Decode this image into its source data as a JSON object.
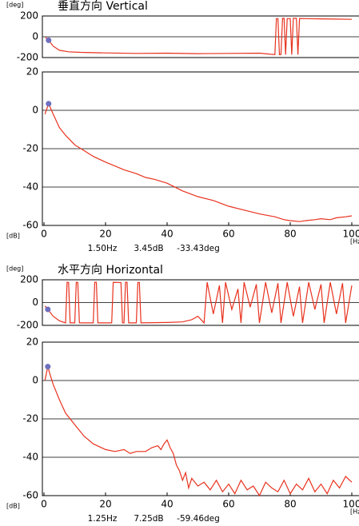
{
  "chart_data": [
    {
      "type": "line",
      "title": "垂直方向 Vertical",
      "y_unit": "[deg]",
      "xlim": [
        0,
        100
      ],
      "ylim": [
        -200,
        200
      ],
      "yticks": [
        -200,
        0,
        200
      ],
      "grid": true,
      "color": "#e8321e",
      "marker_color": "#6f6fc0",
      "x": [
        0.5,
        1.5,
        3,
        5,
        8,
        12,
        20,
        30,
        40,
        50,
        60,
        70,
        75,
        75.5,
        76,
        76.5,
        77,
        77.5,
        78,
        78.5,
        79,
        80,
        80.5,
        81,
        82,
        82.5,
        83,
        85,
        90,
        95,
        100
      ],
      "values": [
        -5,
        -33,
        -90,
        -130,
        -145,
        -150,
        -155,
        -160,
        -158,
        -162,
        -160,
        -158,
        -172,
        175,
        175,
        -172,
        -170,
        178,
        178,
        -172,
        175,
        175,
        -172,
        178,
        178,
        -172,
        176,
        175,
        172,
        170,
        168
      ],
      "marker": {
        "x": 1.5,
        "y": -33.43
      }
    },
    {
      "type": "line",
      "y_unit": "[dB]",
      "x_unit": "[Hz]",
      "xlim": [
        0,
        100
      ],
      "xticks": [
        0,
        20,
        40,
        60,
        80,
        100
      ],
      "ylim": [
        -60,
        20
      ],
      "yticks": [
        -60,
        -40,
        -20,
        0,
        20
      ],
      "grid": true,
      "color": "#e8321e",
      "marker_color": "#6f6fc0",
      "x": [
        0.3,
        1.5,
        3,
        5,
        7,
        10,
        13,
        16,
        20,
        23,
        26,
        30,
        33,
        36,
        40,
        45,
        50,
        55,
        60,
        65,
        70,
        75,
        78,
        80,
        83,
        85,
        88,
        90,
        93,
        95,
        98,
        100
      ],
      "values": [
        -2,
        3.45,
        -2,
        -9,
        -13,
        -18,
        -21,
        -24,
        -27,
        -29,
        -31,
        -33,
        -35,
        -36,
        -38,
        -42,
        -45,
        -47,
        -50,
        -52,
        -54,
        -55.5,
        -57,
        -57.5,
        -58,
        -57.5,
        -57,
        -56.5,
        -57,
        -56,
        -55.5,
        -55
      ],
      "marker": {
        "x": 1.5,
        "y": 3.45,
        "labels": [
          "1.50Hz",
          "3.45dB",
          "-33.43deg"
        ]
      }
    },
    {
      "type": "line",
      "title": "水平方向 Horizontal",
      "y_unit": "[deg]",
      "xlim": [
        0,
        100
      ],
      "ylim": [
        -200,
        200
      ],
      "yticks": [
        -200,
        0,
        200
      ],
      "grid": true,
      "color": "#e8321e",
      "marker_color": "#6f6fc0",
      "x": [
        0.3,
        1.25,
        3,
        5,
        7,
        7.5,
        8,
        8.5,
        10,
        10.5,
        11,
        11.5,
        16,
        16.5,
        17,
        17.5,
        22,
        22.5,
        25,
        25.5,
        26,
        26.5,
        27,
        27.5,
        30,
        30.5,
        31,
        31.5,
        40,
        45,
        48,
        50,
        52,
        53,
        55,
        57,
        58,
        59,
        61,
        63,
        64,
        65,
        67,
        69,
        70,
        72,
        74,
        76,
        77,
        79,
        81,
        83,
        84,
        86,
        88,
        90,
        91,
        93,
        95,
        97,
        98,
        100
      ],
      "values": [
        -30,
        -59.46,
        -120,
        -160,
        -178,
        178,
        176,
        -178,
        -178,
        178,
        176,
        -178,
        -178,
        178,
        178,
        -178,
        -178,
        178,
        176,
        -178,
        -178,
        178,
        178,
        -178,
        -178,
        176,
        176,
        -178,
        -175,
        -170,
        -150,
        -120,
        -178,
        178,
        -100,
        150,
        -178,
        178,
        -60,
        120,
        -178,
        178,
        -40,
        160,
        -178,
        178,
        -90,
        170,
        -178,
        178,
        -120,
        140,
        -178,
        178,
        -60,
        160,
        -178,
        178,
        -100,
        170,
        -178,
        150
      ],
      "marker": {
        "x": 1.25,
        "y": -59.46
      }
    },
    {
      "type": "line",
      "y_unit": "[dB]",
      "x_unit": "[Hz]",
      "xlim": [
        0,
        100
      ],
      "xticks": [
        0,
        20,
        40,
        60,
        80,
        100
      ],
      "ylim": [
        -60,
        20
      ],
      "yticks": [
        -60,
        -40,
        -20,
        0,
        20
      ],
      "grid": true,
      "color": "#e8321e",
      "marker_color": "#6f6fc0",
      "x": [
        0.3,
        1.25,
        2,
        3,
        5,
        7,
        10,
        13,
        16,
        20,
        23,
        26,
        28,
        30,
        33,
        35,
        37,
        38,
        39,
        40,
        41,
        42,
        43,
        44,
        45,
        46,
        47,
        48,
        50,
        52,
        54,
        56,
        58,
        60,
        62,
        64,
        66,
        68,
        70,
        72,
        74,
        76,
        78,
        80,
        82,
        84,
        86,
        88,
        90,
        92,
        94,
        96,
        98,
        100
      ],
      "values": [
        0,
        7.25,
        3,
        -2,
        -10,
        -17,
        -23,
        -29,
        -33,
        -36,
        -37,
        -36,
        -38,
        -37,
        -37,
        -35,
        -34,
        -36,
        -33,
        -31,
        -35,
        -38,
        -44,
        -47,
        -52,
        -48,
        -56,
        -51,
        -55,
        -53,
        -57,
        -52,
        -58,
        -54,
        -59,
        -52,
        -57,
        -55,
        -60,
        -53,
        -56,
        -58,
        -52,
        -59,
        -54,
        -57,
        -51,
        -58,
        -54,
        -59,
        -52,
        -56,
        -50,
        -53
      ],
      "marker": {
        "x": 1.25,
        "y": 7.25,
        "labels": [
          "1.25Hz",
          "7.25dB",
          "-59.46deg"
        ]
      }
    }
  ]
}
